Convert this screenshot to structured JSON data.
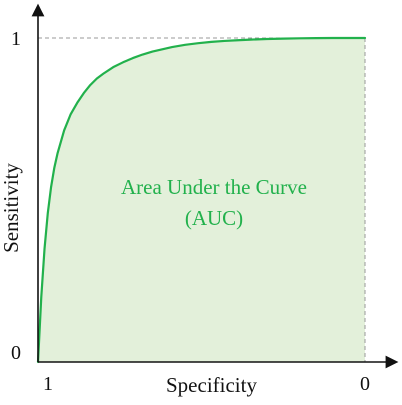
{
  "chart_data": {
    "type": "area",
    "title": "",
    "xlabel": "Specificity",
    "ylabel": "Sensitivity",
    "x_ticks": [
      {
        "value": 1,
        "label": "1"
      },
      {
        "value": 0,
        "label": "0"
      }
    ],
    "y_ticks": [
      {
        "value": 0,
        "label": "0"
      },
      {
        "value": 1,
        "label": "1"
      }
    ],
    "xlim": [
      1,
      0
    ],
    "ylim": [
      0,
      1
    ],
    "x_reversed": true,
    "grid": false,
    "reference_line": {
      "y": 1,
      "style": "dashed"
    },
    "series": [
      {
        "x": [
          1,
          0.99,
          0.98,
          0.97,
          0.96,
          0.95,
          0.94,
          0.92,
          0.9,
          0.88,
          0.86,
          0.84,
          0.82,
          0.8,
          0.77,
          0.74,
          0.71,
          0.68,
          0.65,
          0.62,
          0.59,
          0.55,
          0.51,
          0.47,
          0.43,
          0.39,
          0.35,
          0.3,
          0.25,
          0.2,
          0.15,
          0.1,
          0.05,
          0
        ],
        "y": [
          0,
          0.2,
          0.35,
          0.46,
          0.54,
          0.6,
          0.645,
          0.715,
          0.765,
          0.8,
          0.83,
          0.855,
          0.875,
          0.89,
          0.91,
          0.925,
          0.938,
          0.949,
          0.958,
          0.965,
          0.972,
          0.979,
          0.984,
          0.988,
          0.991,
          0.993,
          0.995,
          0.997,
          0.998,
          0.999,
          0.9995,
          1,
          1,
          1
        ]
      }
    ],
    "annotations": [
      {
        "line1": "Area Under the Curve",
        "line2": "(AUC)"
      }
    ],
    "colors": {
      "curve": "#22b14c",
      "fill": "#e3f0da",
      "annotation": "#22b14c",
      "axis": "#111111",
      "dashed": "#9a9a9a"
    }
  }
}
